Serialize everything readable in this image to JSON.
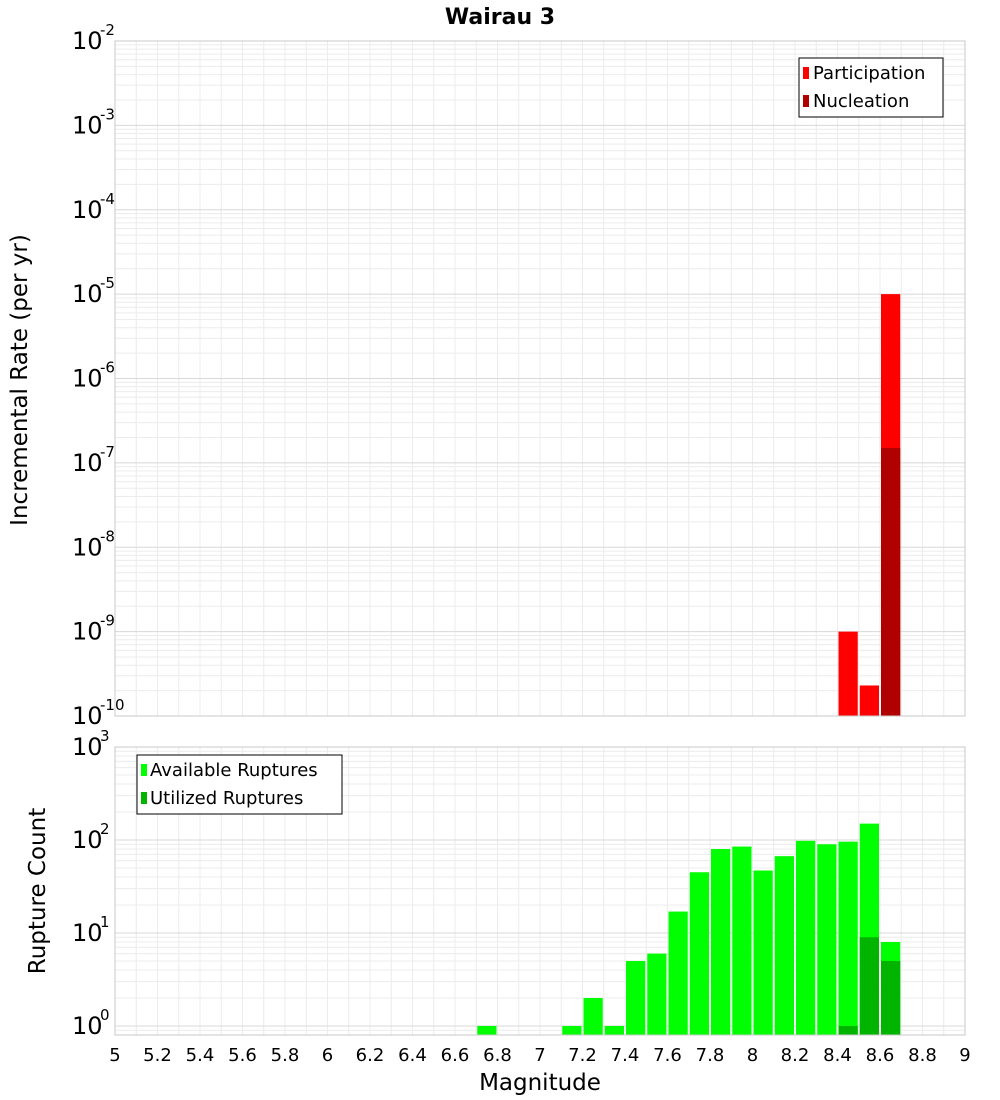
{
  "chart_data": [
    {
      "type": "bar",
      "title": "Wairau 3",
      "ylabel": "Incremental Rate (per yr)",
      "xlabel": "",
      "yscale": "log",
      "ylim": [
        1e-10,
        0.01
      ],
      "xlim": [
        5,
        9
      ],
      "bin_width": 0.1,
      "grid": true,
      "legend_position": "top-right",
      "series": [
        {
          "name": "Participation",
          "color": "#ff0000",
          "x": [
            8.45,
            8.55,
            8.65
          ],
          "values": [
            1e-09,
            2.3e-10,
            1e-05
          ]
        },
        {
          "name": "Nucleation",
          "color": "#b00000",
          "x": [
            8.65
          ],
          "values": [
            1.5e-07
          ]
        }
      ]
    },
    {
      "type": "bar",
      "title": "",
      "ylabel": "Rupture Count",
      "xlabel": "Magnitude",
      "yscale": "log",
      "ylim": [
        0.8,
        1000
      ],
      "xlim": [
        5,
        9
      ],
      "bin_width": 0.1,
      "grid": true,
      "legend_position": "top-left",
      "xticks": [
        "5",
        "5.2",
        "5.4",
        "5.6",
        "5.8",
        "6",
        "6.2",
        "6.4",
        "6.6",
        "6.8",
        "7",
        "7.2",
        "7.4",
        "7.6",
        "7.8",
        "8",
        "8.2",
        "8.4",
        "8.6",
        "8.8",
        "9"
      ],
      "series": [
        {
          "name": "Available Ruptures",
          "color": "#00ff00",
          "x": [
            6.75,
            7.15,
            7.25,
            7.35,
            7.45,
            7.55,
            7.65,
            7.75,
            7.85,
            7.95,
            8.05,
            8.15,
            8.25,
            8.35,
            8.45,
            8.55,
            8.65
          ],
          "values": [
            1,
            1,
            2,
            1,
            5,
            6,
            17,
            45,
            80,
            85,
            47,
            67,
            98,
            90,
            96,
            150,
            8
          ]
        },
        {
          "name": "Utilized Ruptures",
          "color": "#00b400",
          "x": [
            8.45,
            8.55,
            8.65
          ],
          "values": [
            1,
            9,
            5
          ]
        }
      ]
    }
  ]
}
